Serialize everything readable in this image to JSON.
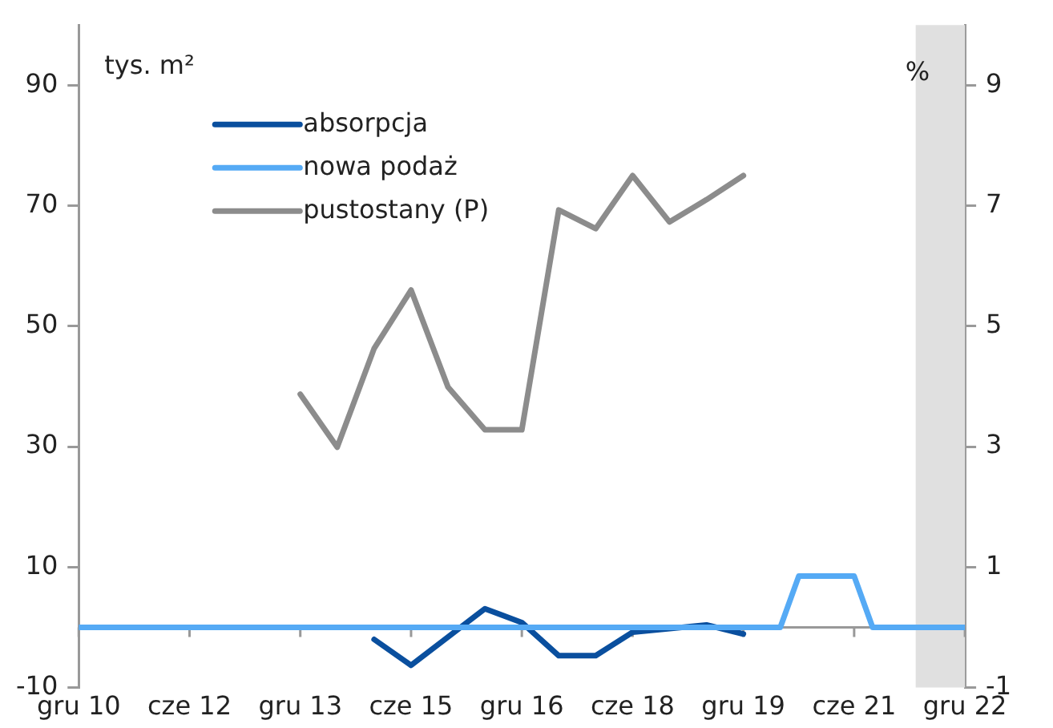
{
  "chart_data": {
    "type": "line",
    "ylabel": "tys. m²",
    "y2label": "%",
    "xlim": [
      "2010-12",
      "2022-12"
    ],
    "xticks": [
      {
        "value": "2010-12",
        "label": "gru 10"
      },
      {
        "value": "2012-06",
        "label": "cze 12"
      },
      {
        "value": "2013-12",
        "label": "gru 13"
      },
      {
        "value": "2015-06",
        "label": "cze 15"
      },
      {
        "value": "2016-12",
        "label": "gru 16"
      },
      {
        "value": "2018-06",
        "label": "cze 18"
      },
      {
        "value": "2019-12",
        "label": "gru 19"
      },
      {
        "value": "2021-06",
        "label": "cze 21"
      },
      {
        "value": "2022-12",
        "label": "gru 22"
      }
    ],
    "ylim": [
      -10,
      100
    ],
    "yticks": [
      -10,
      10,
      30,
      50,
      70,
      90
    ],
    "y2lim": [
      -1,
      10
    ],
    "y2ticks": [
      -1,
      1,
      3,
      5,
      7,
      9
    ],
    "series": [
      {
        "name": "absorpcja",
        "color": "#0a4f9e",
        "x": [
          "2014-12",
          "2015-06",
          "2015-12",
          "2016-06",
          "2016-12",
          "2017-06",
          "2017-12",
          "2018-06",
          "2018-12",
          "2019-06",
          "2019-12"
        ],
        "values": [
          -2,
          -6.3,
          -1.6,
          3.1,
          0.8,
          -4.7,
          -4.7,
          -0.8,
          -0.2,
          0.4,
          -1.1
        ]
      },
      {
        "name": "nowa podaż",
        "color": "#55aaf5",
        "x": [
          "2010-12",
          "2011-03",
          "2011-06",
          "2011-09",
          "2011-12",
          "2012-03",
          "2012-06",
          "2012-09",
          "2012-12",
          "2013-03",
          "2013-06",
          "2013-09",
          "2013-12",
          "2014-03",
          "2014-06",
          "2014-09",
          "2014-12",
          "2015-03",
          "2015-06",
          "2015-09",
          "2015-12",
          "2016-03",
          "2016-06",
          "2016-09",
          "2016-12",
          "2017-03",
          "2017-06",
          "2017-09",
          "2017-12",
          "2018-03",
          "2018-06",
          "2018-09",
          "2018-12",
          "2019-03",
          "2019-06",
          "2019-09",
          "2019-12",
          "2020-03",
          "2020-06",
          "2020-09",
          "2020-12",
          "2021-03",
          "2021-06",
          "2021-09",
          "2021-12",
          "2022-03",
          "2022-06",
          "2022-09",
          "2022-12"
        ],
        "values": [
          0,
          0,
          0,
          0,
          0,
          0,
          0,
          0,
          0,
          0,
          0,
          0,
          0,
          0,
          0,
          0,
          0,
          0,
          0,
          0,
          0,
          0,
          0,
          0,
          0,
          0,
          0,
          0,
          0,
          0,
          0,
          0,
          0,
          0,
          0,
          0,
          0,
          0,
          0,
          8.5,
          8.5,
          8.5,
          8.5,
          0,
          0,
          0,
          0,
          0,
          0
        ]
      },
      {
        "name": "pustostany (P)",
        "color": "#8c8c8c",
        "axis": "y2",
        "x": [
          "2013-12",
          "2014-06",
          "2014-12",
          "2015-06",
          "2015-12",
          "2016-06",
          "2016-12",
          "2017-06",
          "2017-12",
          "2018-06",
          "2018-12",
          "2019-06",
          "2019-12"
        ],
        "values": [
          3.87,
          2.99,
          4.63,
          5.6,
          3.99,
          3.28,
          3.28,
          6.93,
          6.62,
          7.5,
          6.73,
          7.1,
          7.5
        ]
      }
    ],
    "bands": [
      {
        "axis": "x",
        "from": "2022-04",
        "to": "2022-12",
        "color": "#e0e0e0"
      }
    ],
    "legend": "top left",
    "grid": false,
    "line_style": "solid",
    "marker": "none"
  }
}
